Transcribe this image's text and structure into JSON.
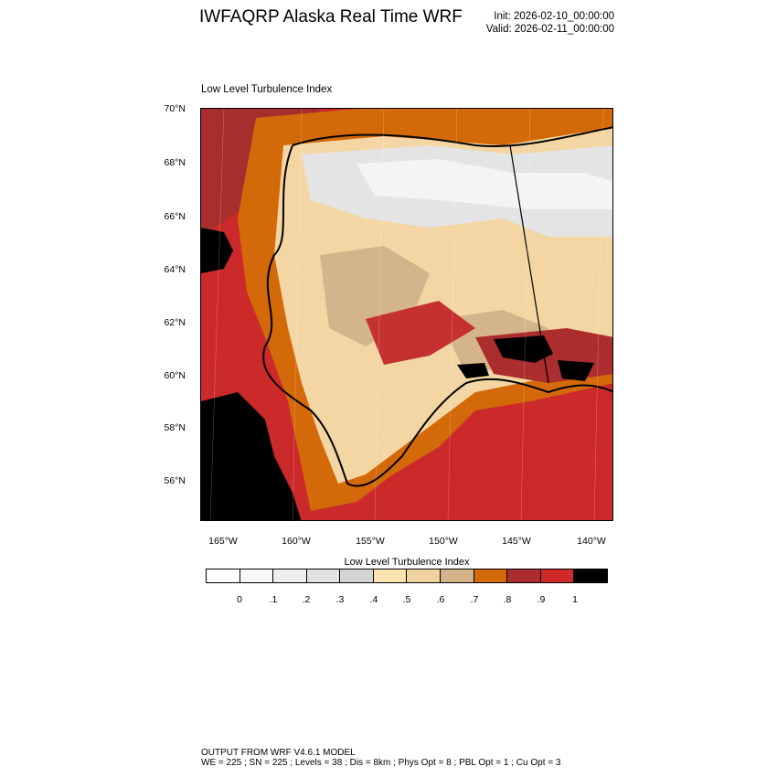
{
  "header": {
    "title": "IWFAQRP Alaska Real Time WRF",
    "init": "Init: 2026-02-10_00:00:00",
    "valid": "Valid: 2026-02-11_00:00:00"
  },
  "map": {
    "subtitle": "Low Level Turbulence Index",
    "lat_labels": [
      "70°N",
      "68°N",
      "66°N",
      "64°N",
      "62°N",
      "60°N",
      "58°N",
      "56°N"
    ],
    "lon_labels": [
      "165°W",
      "160°W",
      "155°W",
      "150°W",
      "145°W",
      "140°W"
    ],
    "field_name": "Low Level Turbulence Index",
    "field_range": [
      0,
      1
    ]
  },
  "colorbar": {
    "title": "Low Level Turbulence Index",
    "colors": [
      "#ffffff",
      "#f8f8f8",
      "#efefef",
      "#e2e2e2",
      "#d4d4d4",
      "#fde3b2",
      "#f1d3a2",
      "#d4b48a",
      "#d4690a",
      "#ac2d2d",
      "#d12a2a",
      "#000000"
    ],
    "labels": [
      "0",
      ".1",
      ".2",
      ".3",
      ".4",
      ".5",
      ".6",
      ".7",
      ".8",
      ".9",
      "1"
    ]
  },
  "footer": {
    "line1": "OUTPUT FROM WRF V4.6.1 MODEL",
    "line2": "WE = 225 ; SN = 225 ; Levels = 38 ; Dis = 8km ; Phys Opt = 8 ; PBL Opt = 1 ; Cu Opt = 3"
  }
}
